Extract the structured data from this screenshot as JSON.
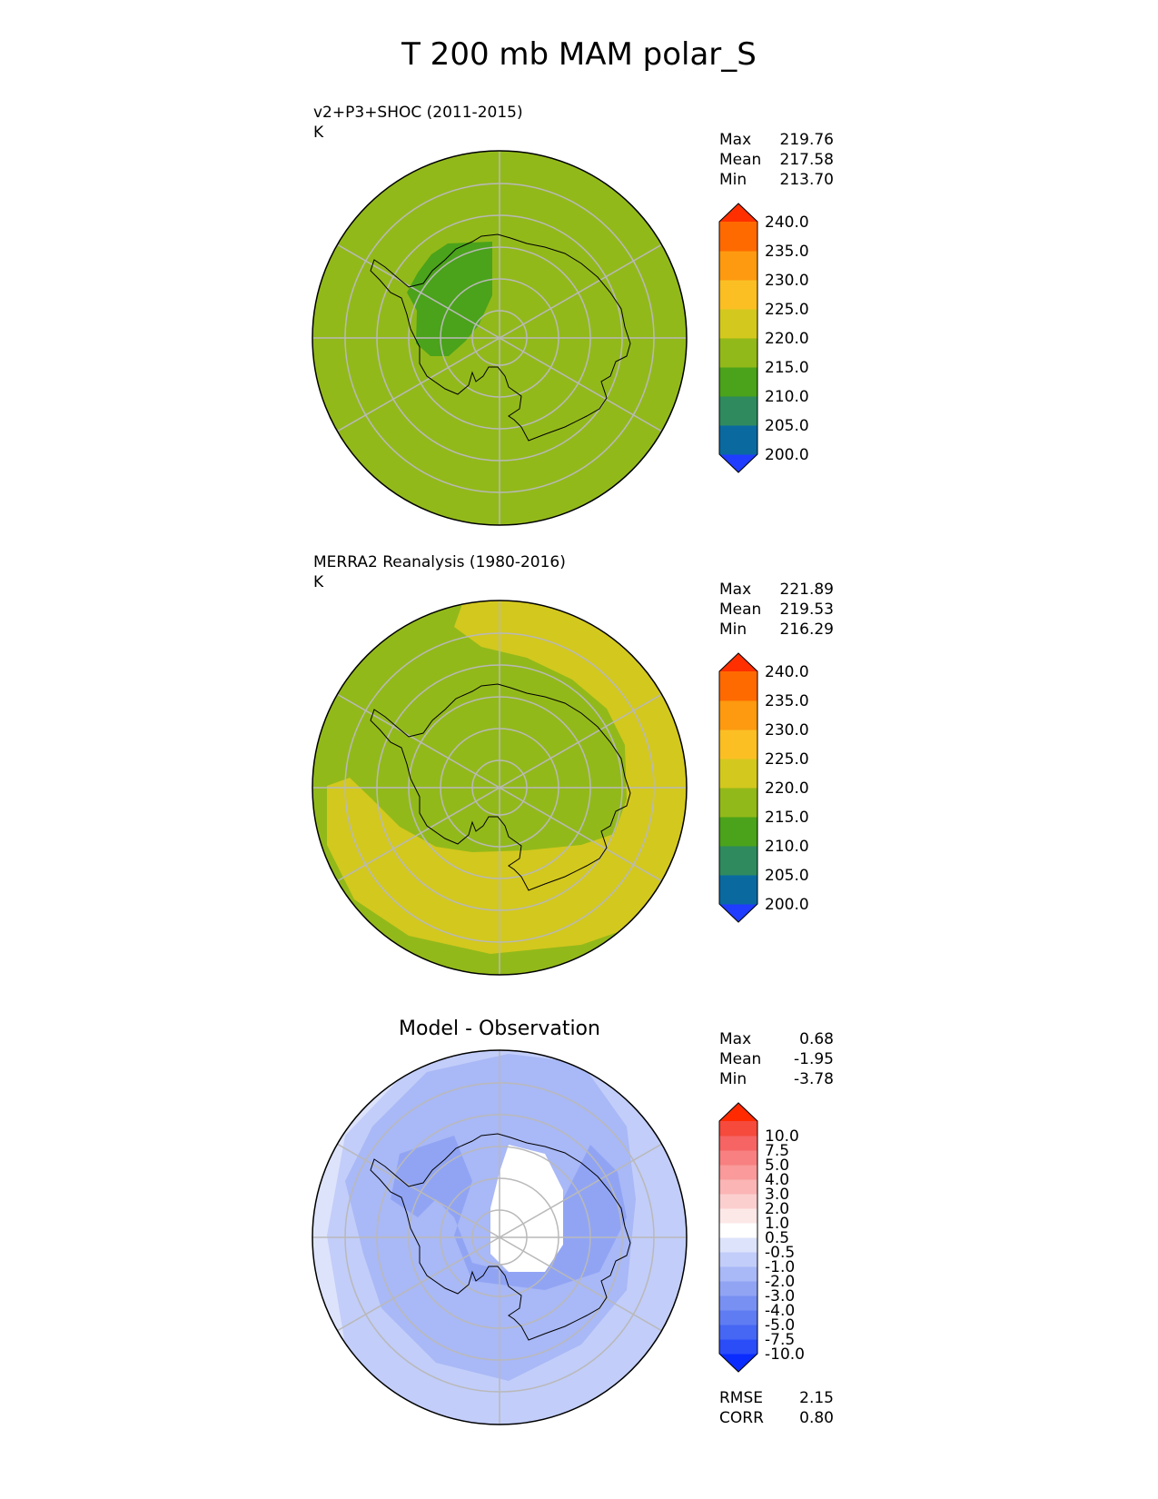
{
  "figure_title": "T 200 mb MAM polar_S",
  "panels": [
    {
      "title": "v2+P3+SHOC (2011-2015)",
      "units": "K",
      "stats": {
        "max_label": "Max",
        "max": "219.76",
        "mean_label": "Mean",
        "mean": "217.58",
        "min_label": "Min",
        "min": "213.70"
      },
      "colorbar": {
        "ticks": [
          "240.0",
          "235.0",
          "230.0",
          "225.0",
          "220.0",
          "215.0",
          "210.0",
          "205.0",
          "200.0"
        ],
        "colors": [
          "#1f3cff",
          "#0a6aa0",
          "#2f8a5e",
          "#4aa31a",
          "#92b91a",
          "#d3c81e",
          "#fbbf24",
          "#fd9a10",
          "#fe6a00",
          "#ff2f00"
        ]
      }
    },
    {
      "title": "MERRA2 Reanalysis (1980-2016)",
      "units": "K",
      "stats": {
        "max_label": "Max",
        "max": "221.89",
        "mean_label": "Mean",
        "mean": "219.53",
        "min_label": "Min",
        "min": "216.29"
      },
      "colorbar": {
        "ticks": [
          "240.0",
          "235.0",
          "230.0",
          "225.0",
          "220.0",
          "215.0",
          "210.0",
          "205.0",
          "200.0"
        ],
        "colors": [
          "#1f3cff",
          "#0a6aa0",
          "#2f8a5e",
          "#4aa31a",
          "#92b91a",
          "#d3c81e",
          "#fbbf24",
          "#fd9a10",
          "#fe6a00",
          "#ff2f00"
        ]
      }
    },
    {
      "title": "Model - Observation",
      "stats": {
        "max_label": "Max",
        "max": "0.68",
        "mean_label": "Mean",
        "mean": "-1.95",
        "min_label": "Min",
        "min": "-3.78"
      },
      "extra_stats": {
        "rmse_label": "RMSE",
        "rmse": "2.15",
        "corr_label": "CORR",
        "corr": "0.80"
      },
      "colorbar": {
        "ticks": [
          "10.0",
          "7.5",
          "5.0",
          "4.0",
          "3.0",
          "2.0",
          "1.0",
          "0.5",
          "-0.5",
          "-1.0",
          "-2.0",
          "-3.0",
          "-4.0",
          "-5.0",
          "-7.5",
          "-10.0"
        ],
        "colors": [
          "#0a2cff",
          "#2a4df8",
          "#4666f4",
          "#5f7cf2",
          "#7890f2",
          "#91a4f4",
          "#a9b8f6",
          "#c2cdf9",
          "#dde3fb",
          "#ffffff",
          "#fde8e8",
          "#fccfcf",
          "#fbb5b5",
          "#fa9a9a",
          "#f88080",
          "#f66464",
          "#f54a3c",
          "#ff2a00"
        ]
      }
    }
  ]
}
